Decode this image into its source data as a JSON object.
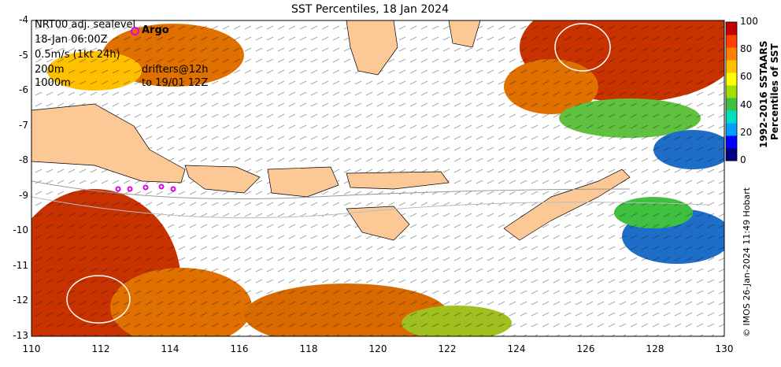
{
  "title": "SST Percentiles, 18 Jan 2024",
  "y_ticks": [
    "-4",
    "-5",
    "-6",
    "-7",
    "-8",
    "-9",
    "-10",
    "-11",
    "-12",
    "-13"
  ],
  "x_ticks": [
    "110",
    "112",
    "114",
    "116",
    "118",
    "120",
    "122",
    "124",
    "126",
    "128",
    "130"
  ],
  "legend": {
    "line1": "NRT00 adj. sealevel",
    "line2": "18-Jan 06:00Z",
    "line3": "0.5m/s (1kt 24h)",
    "line4": "200m",
    "line5": "1000m",
    "drifters1": "drifters@12h",
    "drifters2": "to 19/01 12Z",
    "argo": "Argo"
  },
  "colorbar": {
    "ticks": [
      "100",
      "80",
      "60",
      "40",
      "20",
      "0"
    ],
    "title1": "1992-2016 SSTAARS",
    "title2": "Percentiles of SST",
    "colors": [
      "#00007f",
      "#0000ff",
      "#00a0ff",
      "#00e0c0",
      "#40c040",
      "#a0e000",
      "#ffff00",
      "#ffc000",
      "#ff8000",
      "#ff4000",
      "#c00000"
    ]
  },
  "credit": "© IMOS 26-Jan-2024 11:49 Hobart",
  "colors": {
    "land": "#fcc896",
    "high": "#c83200",
    "orange": "#e07000",
    "mid": "#a0c020",
    "low": "#1e6ec8"
  }
}
